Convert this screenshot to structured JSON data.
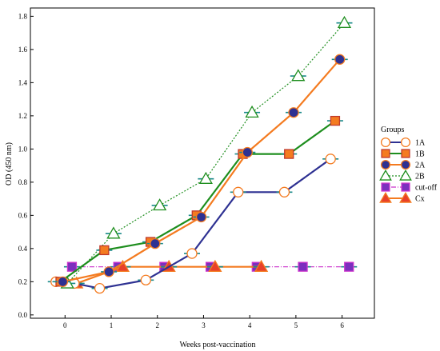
{
  "chart_data": {
    "type": "line",
    "xlabel": "Weeks post-vaccination",
    "ylabel": "OD (450 nm)",
    "xlim": [
      -0.75,
      6.7
    ],
    "ylim": [
      -0.02,
      1.85
    ],
    "x_ticks": [
      0,
      1,
      2,
      3,
      4,
      5,
      6
    ],
    "x_tick_labels": [
      "0",
      "1",
      "2",
      "3",
      "4",
      "5",
      "6"
    ],
    "y_ticks": [
      0.0,
      0.2,
      0.4,
      0.6,
      0.8,
      1.0,
      1.2,
      1.4,
      1.6,
      1.8
    ],
    "y_tick_labels": [
      "0.0",
      "0.2",
      "0.4",
      "0.6",
      "0.8",
      "1.0",
      "1.2",
      "1.4",
      "1.6",
      "1.8"
    ],
    "grid": false,
    "error_bar_color": "#1a8a8a",
    "legend": {
      "title": "Groups",
      "placement": "right"
    },
    "series": [
      {
        "name": "1A",
        "color": "#2e3192",
        "marker": "circle",
        "marker_fill": "#ffffff",
        "marker_stroke": "#f47b20",
        "line_style": "solid",
        "x": [
          -0.2,
          0.2,
          0.75,
          1.75,
          2.75,
          3.75,
          4.75,
          5.75
        ],
        "y": [
          0.2,
          0.19,
          0.16,
          0.21,
          0.37,
          0.74,
          0.74,
          0.94
        ]
      },
      {
        "name": "1B",
        "color": "#1e8e1e",
        "marker": "square",
        "marker_fill": "#f47b20",
        "marker_stroke": "#c0392b",
        "line_style": "solid",
        "x": [
          -0.1,
          0.85,
          1.85,
          2.85,
          3.85,
          4.85,
          5.85
        ],
        "y": [
          0.2,
          0.39,
          0.44,
          0.6,
          0.97,
          0.97,
          1.17
        ]
      },
      {
        "name": "2A",
        "color": "#f47b20",
        "marker": "circle",
        "marker_fill": "#2e3192",
        "marker_stroke": "#f47b20",
        "line_style": "solid",
        "x": [
          -0.05,
          0.95,
          1.95,
          2.95,
          3.95,
          4.95,
          5.95
        ],
        "y": [
          0.2,
          0.26,
          0.43,
          0.59,
          0.98,
          1.22,
          1.54
        ]
      },
      {
        "name": "2B",
        "color": "#1e8e1e",
        "marker": "triangle",
        "marker_fill": "#ffffff",
        "marker_stroke": "#1e8e1e",
        "line_style": "dotted",
        "x": [
          0.05,
          1.05,
          2.05,
          3.05,
          4.05,
          5.05,
          6.05
        ],
        "y": [
          0.19,
          0.49,
          0.66,
          0.82,
          1.22,
          1.44,
          1.76
        ]
      },
      {
        "name": "cut-off",
        "color": "#cc33cc",
        "marker": "square",
        "marker_fill": "#7b2fbe",
        "marker_stroke": "#cc33cc",
        "line_style": "dashdot",
        "x": [
          0.15,
          1.15,
          2.15,
          3.15,
          4.15,
          5.15,
          6.15
        ],
        "y": [
          0.29,
          0.29,
          0.29,
          0.29,
          0.29,
          0.29,
          0.29
        ]
      },
      {
        "name": "Cx",
        "color": "#f47b20",
        "marker": "triangle",
        "marker_fill": "#e8402a",
        "marker_stroke": "#f47b20",
        "line_style": "solid",
        "x": [
          0.25,
          1.25,
          2.25,
          3.25,
          4.25
        ],
        "y": [
          0.19,
          0.29,
          0.29,
          0.29,
          0.29
        ]
      }
    ]
  }
}
